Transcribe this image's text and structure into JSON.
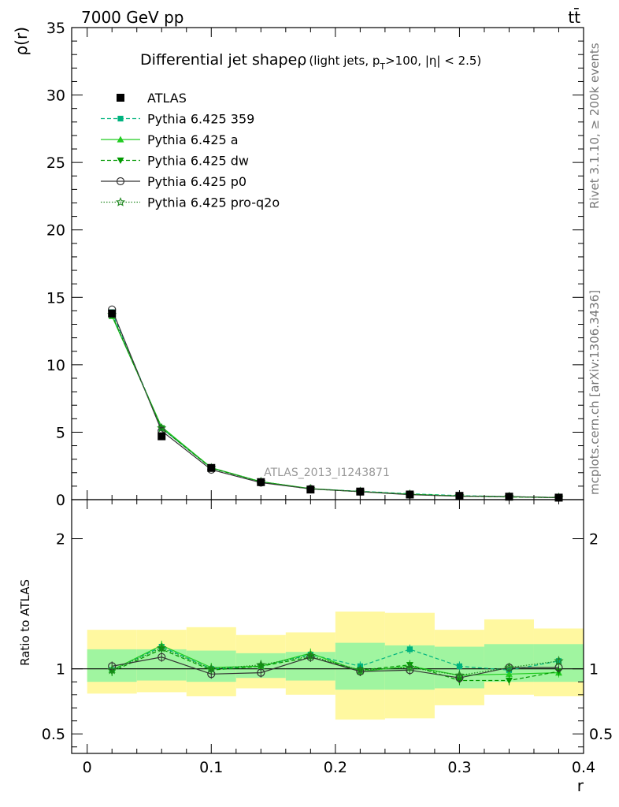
{
  "header": {
    "energy_label": "7000 GeV pp",
    "process_label": "tt̄"
  },
  "side_labels": {
    "rivet": "Rivet 3.1.10, ≥ 200k events",
    "mcplots": "mcplots.cern.ch [arXiv:1306.3436]"
  },
  "chart_data": {
    "type": "line",
    "title_main": "Differential jet shapeρ",
    "title_sub_1": "(light jets, p",
    "title_sub_T": "T",
    "title_sub_2": ">100, |η| < 2.5)",
    "analysis_label": "ATLAS_2013_I1243871",
    "xlabel": "r",
    "ylabel": "ρ(r)",
    "ratio_ylabel": "Ratio to ATLAS",
    "xlim": [
      -0.0125,
      0.4
    ],
    "ylim": [
      0,
      35
    ],
    "ratio_ylim": [
      0.35,
      2.3
    ],
    "x_ticks": [
      "0",
      "0.1",
      "0.2",
      "0.3",
      "0.4"
    ],
    "x_tick_values": [
      0,
      0.1,
      0.2,
      0.3,
      0.4
    ],
    "y_ticks": [
      "0",
      "5",
      "10",
      "15",
      "20",
      "25",
      "30",
      "35"
    ],
    "y_tick_values": [
      0,
      5,
      10,
      15,
      20,
      25,
      30,
      35
    ],
    "ratio_ticks": [
      "0.5",
      "1",
      "2"
    ],
    "ratio_tick_values": [
      0.5,
      1,
      2
    ],
    "bins": [
      [
        0,
        0.04
      ],
      [
        0.04,
        0.08
      ],
      [
        0.08,
        0.12
      ],
      [
        0.12,
        0.16
      ],
      [
        0.16,
        0.2
      ],
      [
        0.2,
        0.24
      ],
      [
        0.24,
        0.28
      ],
      [
        0.28,
        0.32
      ],
      [
        0.32,
        0.36
      ],
      [
        0.36,
        0.4
      ]
    ],
    "x": [
      0.02,
      0.06,
      0.1,
      0.14,
      0.18,
      0.22,
      0.26,
      0.3,
      0.34,
      0.38
    ],
    "data": {
      "name": "ATLAS",
      "values": [
        13.8,
        4.7,
        2.35,
        1.3,
        0.75,
        0.6,
        0.38,
        0.28,
        0.22,
        0.15
      ],
      "band_inner": [
        [
          0.9,
          1.15
        ],
        [
          0.91,
          1.15
        ],
        [
          0.9,
          1.14
        ],
        [
          0.93,
          1.12
        ],
        [
          0.91,
          1.13
        ],
        [
          0.84,
          1.2
        ],
        [
          0.84,
          1.18
        ],
        [
          0.85,
          1.17
        ],
        [
          0.9,
          1.19
        ],
        [
          0.9,
          1.19
        ]
      ],
      "band_outer": [
        [
          0.81,
          1.3
        ],
        [
          0.82,
          1.3
        ],
        [
          0.79,
          1.32
        ],
        [
          0.85,
          1.26
        ],
        [
          0.8,
          1.28
        ],
        [
          0.61,
          1.44
        ],
        [
          0.62,
          1.43
        ],
        [
          0.72,
          1.3
        ],
        [
          0.8,
          1.38
        ],
        [
          0.79,
          1.31
        ]
      ]
    },
    "series": [
      {
        "name": "Pythia 6.425 359",
        "color": "#00b37e",
        "dash": "5,3",
        "marker": "square",
        "values": [
          13.9,
          5.3,
          2.35,
          1.33,
          0.81,
          0.62,
          0.44,
          0.3,
          0.22,
          0.16
        ],
        "ratio": [
          0.99,
          1.17,
          1.0,
          1.02,
          1.11,
          1.02,
          1.15,
          1.02,
          0.99,
          1.06
        ]
      },
      {
        "name": "Pythia 6.425 a",
        "color": "#22cc22",
        "dash": "",
        "marker": "triangle-up",
        "values": [
          13.6,
          5.4,
          2.37,
          1.33,
          0.82,
          0.59,
          0.4,
          0.27,
          0.21,
          0.15
        ],
        "ratio": [
          0.99,
          1.18,
          1.01,
          1.02,
          1.12,
          0.98,
          1.02,
          0.95,
          0.96,
          0.97
        ]
      },
      {
        "name": "Pythia 6.425 dw",
        "color": "#009900",
        "dash": "5,3",
        "marker": "triangle-down",
        "values": [
          13.7,
          5.3,
          2.33,
          1.32,
          0.79,
          0.6,
          0.39,
          0.26,
          0.2,
          0.15
        ],
        "ratio": [
          0.98,
          1.15,
          0.99,
          1.02,
          1.09,
          0.99,
          1.03,
          0.91,
          0.91,
          0.98
        ]
      },
      {
        "name": "Pythia 6.425 p0",
        "color": "#333333",
        "dash": "",
        "marker": "circle-open",
        "values": [
          14.1,
          5.1,
          2.22,
          1.26,
          0.8,
          0.59,
          0.37,
          0.26,
          0.22,
          0.15
        ],
        "ratio": [
          1.02,
          1.09,
          0.96,
          0.97,
          1.09,
          0.98,
          0.99,
          0.93,
          1.01,
          1.01
        ]
      },
      {
        "name": "Pythia 6.425 pro-q2o",
        "color": "#228822",
        "dash": "1.5,2",
        "marker": "star-open",
        "values": [
          13.7,
          5.3,
          2.35,
          1.33,
          0.8,
          0.6,
          0.4,
          0.27,
          0.22,
          0.16
        ],
        "ratio": [
          0.99,
          1.16,
          1.0,
          1.03,
          1.1,
          0.99,
          1.01,
          0.95,
          1.01,
          1.06
        ]
      }
    ]
  }
}
